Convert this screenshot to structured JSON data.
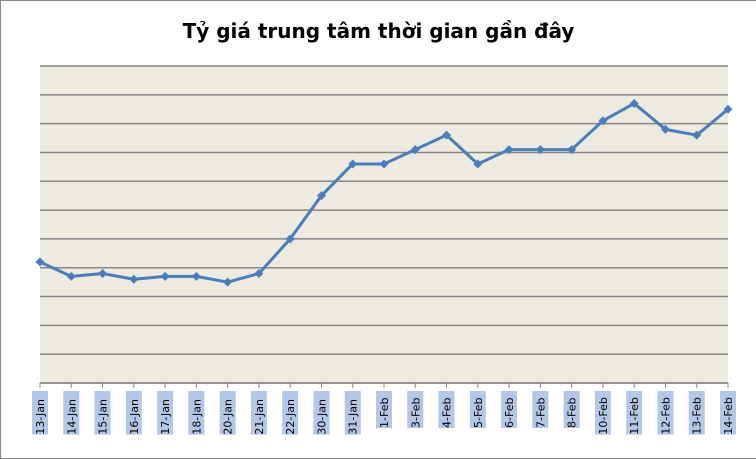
{
  "chart_data": {
    "type": "line",
    "title": "Tỷ giá trung tâm thời gian gần đây",
    "xlabel": "",
    "ylabel": "",
    "categories": [
      "13-Jan",
      "14-Jan",
      "15-Jan",
      "16-Jan",
      "17-Jan",
      "18-Jan",
      "20-Jan",
      "21-Jan",
      "22-Jan",
      "30-Jan",
      "31-Jan",
      "1-Feb",
      "3-Feb",
      "4-Feb",
      "5-Feb",
      "6-Feb",
      "7-Feb",
      "8-Feb",
      "10-Feb",
      "11-Feb",
      "12-Feb",
      "13-Feb",
      "14-Feb"
    ],
    "series": [
      {
        "name": "Tỷ giá trung tâm",
        "color": "#4a7ebb",
        "values": [
          4.2,
          3.7,
          3.8,
          3.6,
          3.7,
          3.7,
          3.5,
          3.8,
          5.0,
          6.5,
          7.6,
          7.6,
          8.1,
          8.6,
          7.6,
          8.1,
          8.1,
          8.1,
          9.1,
          9.7,
          8.8,
          8.6,
          9.5
        ]
      }
    ],
    "ylim": [
      0,
      11
    ],
    "y_tick_labels_visible": false,
    "grid": true,
    "gridline_count": 12,
    "legend": "none",
    "plot_background": "#edeae0",
    "gridline_color": "#868686",
    "x_label_highlight_color": "#b4c7e7"
  }
}
